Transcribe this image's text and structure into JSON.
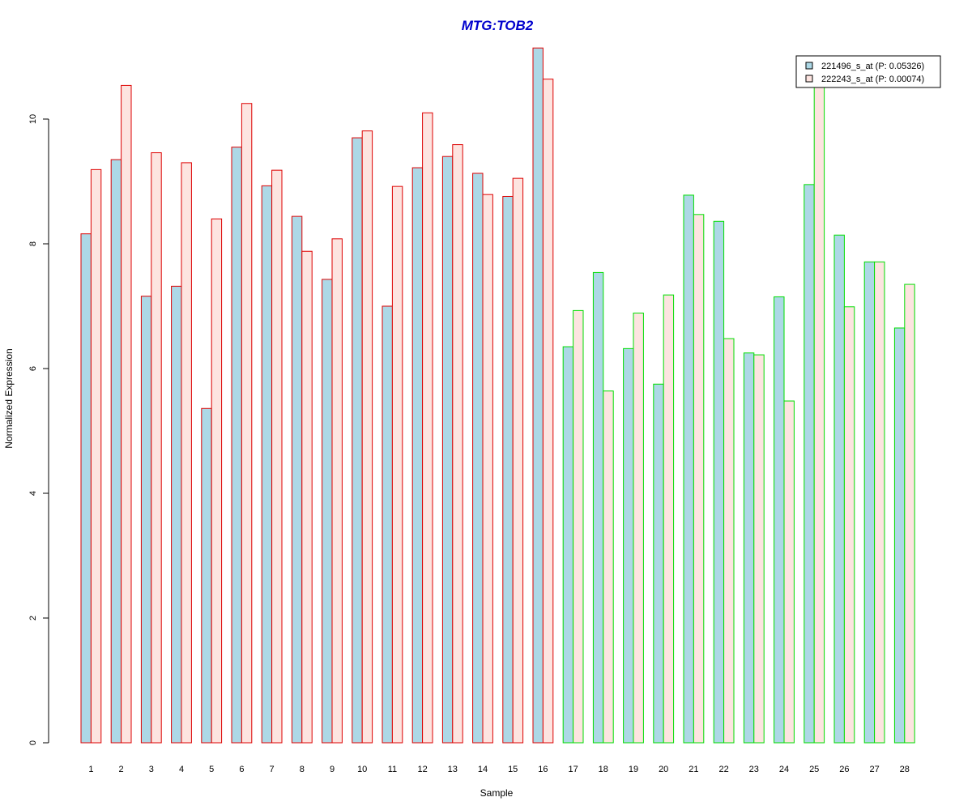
{
  "chart_data": {
    "type": "bar",
    "title": "MTG:TOB2",
    "xlabel": "Sample",
    "ylabel": "Normalized Expression",
    "ylim": [
      0,
      11.2
    ],
    "yticks": [
      0,
      2,
      4,
      6,
      8,
      10
    ],
    "grid": false,
    "legend_position": "top-right",
    "categories": [
      "1",
      "2",
      "3",
      "4",
      "5",
      "6",
      "7",
      "8",
      "9",
      "10",
      "11",
      "12",
      "13",
      "14",
      "15",
      "16",
      "17",
      "18",
      "19",
      "20",
      "21",
      "22",
      "23",
      "24",
      "25",
      "26",
      "27",
      "28"
    ],
    "series": [
      {
        "name": "221496_s_at (P: 0.05326)",
        "fill": "#add8e6",
        "values": [
          8.16,
          9.35,
          7.16,
          7.32,
          5.36,
          9.55,
          8.93,
          8.44,
          7.43,
          9.7,
          7.0,
          9.22,
          9.4,
          9.13,
          8.76,
          11.14,
          6.35,
          7.54,
          6.32,
          5.75,
          8.78,
          8.36,
          6.25,
          7.15,
          8.95,
          8.14,
          7.71,
          6.65
        ]
      },
      {
        "name": "222243_s_at (P: 0.00074)",
        "fill": "#fde4e0",
        "values": [
          9.19,
          10.54,
          9.46,
          9.3,
          8.4,
          10.25,
          9.18,
          7.88,
          8.08,
          9.81,
          8.92,
          10.1,
          9.59,
          8.79,
          9.05,
          10.64,
          6.93,
          5.64,
          6.89,
          7.18,
          8.47,
          6.48,
          6.22,
          5.48,
          10.63,
          6.99,
          7.71,
          7.35
        ]
      }
    ],
    "groups": [
      {
        "samples": "1-16",
        "border_color": "#dd0000"
      },
      {
        "samples": "17-28",
        "border_color": "#00dd00"
      }
    ]
  }
}
